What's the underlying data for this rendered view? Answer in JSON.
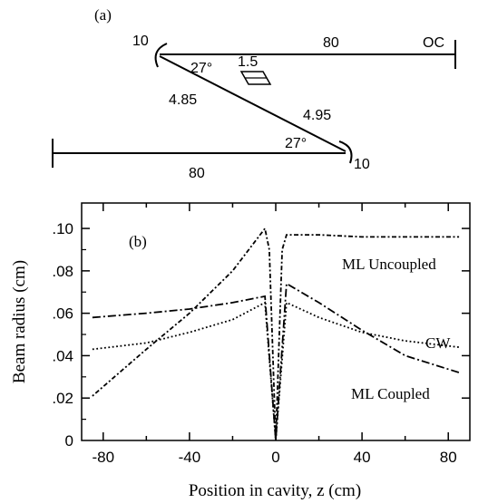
{
  "panel_a": {
    "label": "(a)",
    "mirror_left_roc": "10",
    "mirror_right_roc": "10",
    "arm_top_length": "80",
    "arm_bottom_length": "80",
    "output_coupler": "OC",
    "crystal_length": "1.5",
    "fold_length_left": "4.85",
    "fold_length_right": "4.95",
    "fold_angle_top": "27°",
    "fold_angle_bottom": "27°"
  },
  "panel_b": {
    "label": "(b)"
  },
  "chart_data": {
    "type": "line",
    "xlabel": "Position in cavity, z (cm)",
    "ylabel": "Beam radius (cm)",
    "xlim": [
      -90,
      90
    ],
    "ylim": [
      0,
      0.112
    ],
    "xticks": [
      "-80",
      "-40",
      "0",
      "40",
      "80"
    ],
    "xtick_values": [
      -80,
      -40,
      0,
      40,
      80
    ],
    "yticks": [
      "0",
      ".02",
      ".04",
      ".06",
      ".08",
      ".10"
    ],
    "ytick_values": [
      0,
      0.02,
      0.04,
      0.06,
      0.08,
      0.1
    ],
    "series": [
      {
        "name": "ML Uncoupled",
        "style": "dotdash-fine",
        "x": [
          -85,
          -60,
          -40,
          -20,
          -5,
          -3,
          0,
          3,
          5,
          20,
          40,
          60,
          85
        ],
        "y": [
          0.021,
          0.043,
          0.06,
          0.08,
          0.1,
          0.09,
          0.0,
          0.09,
          0.097,
          0.097,
          0.096,
          0.096,
          0.096
        ]
      },
      {
        "name": "CW",
        "style": "dotted",
        "x": [
          -85,
          -60,
          -40,
          -20,
          -5,
          0,
          5,
          20,
          40,
          60,
          85
        ],
        "y": [
          0.043,
          0.046,
          0.051,
          0.057,
          0.065,
          0.0,
          0.065,
          0.058,
          0.051,
          0.047,
          0.044
        ]
      },
      {
        "name": "ML Coupled",
        "style": "dashdot",
        "x": [
          -85,
          -60,
          -40,
          -20,
          -5,
          0,
          5,
          20,
          40,
          60,
          85
        ],
        "y": [
          0.058,
          0.06,
          0.062,
          0.065,
          0.068,
          0.0,
          0.074,
          0.065,
          0.052,
          0.04,
          0.032
        ]
      }
    ]
  }
}
